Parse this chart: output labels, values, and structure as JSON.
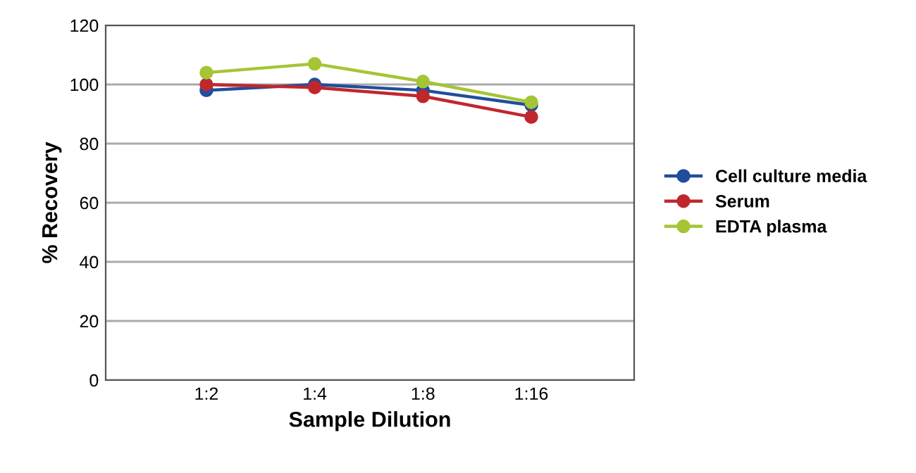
{
  "chart_data": {
    "type": "line",
    "xlabel": "Sample Dilution",
    "ylabel": "% Recovery",
    "categories": [
      "1:2",
      "1:4",
      "1:8",
      "1:16"
    ],
    "series": [
      {
        "name": "Cell culture media",
        "color": "#1f4e9c",
        "values": [
          98,
          100,
          98,
          93
        ]
      },
      {
        "name": "Serum",
        "color": "#c0272d",
        "values": [
          100,
          99,
          96,
          89
        ]
      },
      {
        "name": "EDTA plasma",
        "color": "#a5c534",
        "values": [
          104,
          107,
          101,
          94
        ]
      }
    ],
    "ylim": [
      0,
      120
    ],
    "yticks": [
      0,
      20,
      40,
      60,
      80,
      100,
      120
    ],
    "grid": "y",
    "legend": "right",
    "marker": "circle",
    "line_style": "solid"
  }
}
